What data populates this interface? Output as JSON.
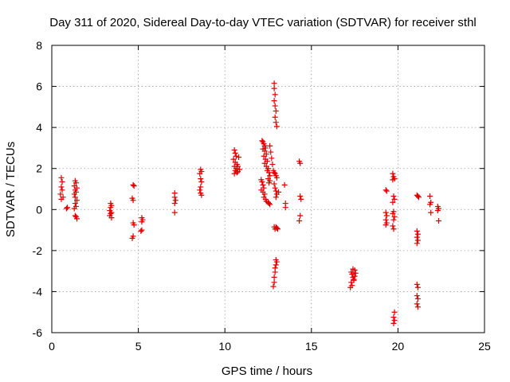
{
  "chart_data": {
    "type": "scatter",
    "title": "Day 311 of 2020, Sidereal Day-to-day VTEC variation (SDTVAR) for receiver sthl",
    "xlabel": "GPS time / hours",
    "ylabel": "SDTVAR / TECUs",
    "xlim": [
      0,
      25
    ],
    "ylim": [
      -6,
      8
    ],
    "xticks": [
      0,
      5,
      10,
      15,
      20,
      25
    ],
    "yticks": [
      -6,
      -4,
      -2,
      0,
      2,
      4,
      6,
      8
    ],
    "x_tick_labels": [
      "0",
      "5",
      "10",
      "15",
      "20",
      "25"
    ],
    "y_tick_labels": [
      "-6",
      "-4",
      "-2",
      "0",
      "2",
      "4",
      "6",
      "8"
    ],
    "grid": true,
    "marker": "+",
    "color": "#e00000",
    "series": [
      {
        "name": "SDTVAR",
        "points": [
          [
            0.55,
            1.55
          ],
          [
            0.6,
            1.35
          ],
          [
            0.55,
            1.1
          ],
          [
            0.6,
            0.95
          ],
          [
            0.5,
            0.75
          ],
          [
            0.65,
            0.6
          ],
          [
            0.55,
            0.5
          ],
          [
            0.9,
            0.1
          ],
          [
            0.85,
            0.05
          ],
          [
            1.35,
            1.4
          ],
          [
            1.4,
            1.3
          ],
          [
            1.3,
            1.15
          ],
          [
            1.45,
            1.05
          ],
          [
            1.35,
            0.95
          ],
          [
            1.4,
            0.85
          ],
          [
            1.3,
            0.75
          ],
          [
            1.35,
            0.6
          ],
          [
            1.45,
            0.45
          ],
          [
            1.35,
            0.3
          ],
          [
            1.4,
            0.15
          ],
          [
            1.3,
            0.05
          ],
          [
            1.35,
            -0.3
          ],
          [
            1.4,
            -0.35
          ],
          [
            1.45,
            -0.45
          ],
          [
            3.4,
            0.3
          ],
          [
            3.45,
            0.2
          ],
          [
            3.4,
            0.1
          ],
          [
            3.35,
            -0.05
          ],
          [
            3.45,
            -0.15
          ],
          [
            3.4,
            -0.2
          ],
          [
            3.35,
            -0.3
          ],
          [
            3.45,
            -0.4
          ],
          [
            4.7,
            1.2
          ],
          [
            4.75,
            1.15
          ],
          [
            4.65,
            0.55
          ],
          [
            4.7,
            0.45
          ],
          [
            4.7,
            -0.65
          ],
          [
            4.75,
            -0.75
          ],
          [
            4.7,
            -1.3
          ],
          [
            4.65,
            -1.4
          ],
          [
            5.2,
            -0.4
          ],
          [
            5.25,
            -0.5
          ],
          [
            5.2,
            -0.6
          ],
          [
            5.2,
            -1.0
          ],
          [
            5.15,
            -1.05
          ],
          [
            7.1,
            0.8
          ],
          [
            7.1,
            0.6
          ],
          [
            7.15,
            0.45
          ],
          [
            7.1,
            0.3
          ],
          [
            7.1,
            -0.15
          ],
          [
            8.6,
            1.95
          ],
          [
            8.65,
            1.85
          ],
          [
            8.55,
            1.75
          ],
          [
            8.6,
            1.5
          ],
          [
            8.65,
            1.35
          ],
          [
            8.6,
            1.1
          ],
          [
            8.55,
            0.95
          ],
          [
            8.6,
            0.8
          ],
          [
            8.65,
            0.7
          ],
          [
            10.55,
            2.9
          ],
          [
            10.6,
            2.75
          ],
          [
            10.65,
            2.6
          ],
          [
            10.5,
            2.45
          ],
          [
            10.6,
            2.3
          ],
          [
            10.7,
            2.2
          ],
          [
            10.55,
            2.1
          ],
          [
            10.65,
            2.0
          ],
          [
            10.6,
            1.9
          ],
          [
            10.7,
            1.8
          ],
          [
            10.55,
            1.75
          ],
          [
            10.8,
            2.55
          ],
          [
            10.75,
            2.1
          ],
          [
            10.85,
            1.95
          ],
          [
            10.75,
            1.85
          ],
          [
            12.15,
            3.35
          ],
          [
            12.2,
            3.3
          ],
          [
            12.25,
            3.2
          ],
          [
            12.3,
            3.1
          ],
          [
            12.35,
            3.0
          ],
          [
            12.2,
            2.95
          ],
          [
            12.3,
            2.85
          ],
          [
            12.4,
            2.7
          ],
          [
            12.25,
            2.6
          ],
          [
            12.35,
            2.45
          ],
          [
            12.45,
            2.35
          ],
          [
            12.3,
            2.25
          ],
          [
            12.4,
            2.1
          ],
          [
            12.5,
            2.0
          ],
          [
            12.45,
            1.9
          ],
          [
            12.55,
            1.8
          ],
          [
            12.6,
            1.65
          ],
          [
            12.5,
            1.5
          ],
          [
            12.6,
            1.4
          ],
          [
            12.55,
            1.3
          ],
          [
            12.1,
            1.45
          ],
          [
            12.15,
            1.35
          ],
          [
            12.2,
            1.2
          ],
          [
            12.25,
            1.05
          ],
          [
            12.1,
            0.95
          ],
          [
            12.2,
            0.85
          ],
          [
            12.3,
            0.75
          ],
          [
            12.25,
            0.6
          ],
          [
            12.35,
            0.5
          ],
          [
            12.4,
            0.4
          ],
          [
            12.5,
            0.35
          ],
          [
            12.55,
            0.3
          ],
          [
            12.6,
            0.25
          ],
          [
            12.6,
            3.1
          ],
          [
            12.65,
            2.8
          ],
          [
            12.7,
            2.5
          ],
          [
            12.75,
            2.2
          ],
          [
            12.8,
            1.9
          ],
          [
            12.85,
            6.15
          ],
          [
            12.85,
            5.9
          ],
          [
            12.9,
            5.6
          ],
          [
            12.85,
            5.3
          ],
          [
            12.9,
            5.05
          ],
          [
            12.95,
            4.8
          ],
          [
            12.9,
            4.5
          ],
          [
            12.95,
            4.25
          ],
          [
            13.0,
            4.05
          ],
          [
            12.85,
            1.8
          ],
          [
            12.9,
            1.75
          ],
          [
            12.95,
            1.65
          ],
          [
            13.0,
            1.55
          ],
          [
            12.85,
            1.25
          ],
          [
            12.9,
            1.05
          ],
          [
            12.95,
            0.9
          ],
          [
            13.0,
            0.75
          ],
          [
            12.95,
            0.6
          ],
          [
            12.85,
            -0.85
          ],
          [
            12.9,
            -0.95
          ],
          [
            12.95,
            -0.85
          ],
          [
            13.0,
            -0.9
          ],
          [
            13.05,
            -0.95
          ],
          [
            12.95,
            -2.45
          ],
          [
            13.0,
            -2.55
          ],
          [
            12.95,
            -2.7
          ],
          [
            12.9,
            -2.85
          ],
          [
            12.9,
            -3.05
          ],
          [
            12.85,
            -3.3
          ],
          [
            12.85,
            -3.55
          ],
          [
            12.8,
            -3.75
          ],
          [
            13.1,
            0.85
          ],
          [
            13.45,
            1.2
          ],
          [
            13.5,
            0.3
          ],
          [
            13.5,
            0.1
          ],
          [
            14.3,
            2.35
          ],
          [
            14.35,
            2.25
          ],
          [
            14.35,
            0.65
          ],
          [
            14.4,
            0.5
          ],
          [
            14.35,
            -0.3
          ],
          [
            14.3,
            -0.55
          ],
          [
            17.3,
            -3.05
          ],
          [
            17.35,
            -3.15
          ],
          [
            17.4,
            -3.3
          ],
          [
            17.45,
            -3.45
          ],
          [
            17.3,
            -3.55
          ],
          [
            17.35,
            -3.7
          ],
          [
            17.25,
            -3.8
          ],
          [
            17.4,
            -2.9
          ],
          [
            17.5,
            -2.95
          ],
          [
            17.55,
            -3.1
          ],
          [
            17.5,
            -3.25
          ],
          [
            17.45,
            -3.4
          ],
          [
            19.3,
            0.95
          ],
          [
            19.35,
            0.9
          ],
          [
            19.3,
            -0.15
          ],
          [
            19.35,
            -0.3
          ],
          [
            19.3,
            -0.5
          ],
          [
            19.35,
            -0.65
          ],
          [
            19.3,
            -0.75
          ],
          [
            19.7,
            1.75
          ],
          [
            19.75,
            1.6
          ],
          [
            19.8,
            1.5
          ],
          [
            19.7,
            1.45
          ],
          [
            19.75,
            0.65
          ],
          [
            19.8,
            0.5
          ],
          [
            19.7,
            0.35
          ],
          [
            19.75,
            -0.1
          ],
          [
            19.7,
            -0.2
          ],
          [
            19.8,
            -0.35
          ],
          [
            19.75,
            -0.5
          ],
          [
            19.7,
            -0.8
          ],
          [
            19.75,
            -0.95
          ],
          [
            19.8,
            -5.0
          ],
          [
            19.75,
            -5.25
          ],
          [
            19.8,
            -5.4
          ],
          [
            19.75,
            -5.55
          ],
          [
            21.1,
            0.7
          ],
          [
            21.15,
            0.65
          ],
          [
            21.2,
            0.6
          ],
          [
            21.1,
            -1.05
          ],
          [
            21.15,
            -1.2
          ],
          [
            21.1,
            -1.35
          ],
          [
            21.15,
            -1.5
          ],
          [
            21.1,
            -1.65
          ],
          [
            21.1,
            -3.65
          ],
          [
            21.15,
            -3.8
          ],
          [
            21.1,
            -4.2
          ],
          [
            21.15,
            -4.35
          ],
          [
            21.1,
            -4.6
          ],
          [
            21.15,
            -4.75
          ],
          [
            21.85,
            0.65
          ],
          [
            21.9,
            0.35
          ],
          [
            21.85,
            0.25
          ],
          [
            21.9,
            -0.15
          ],
          [
            22.3,
            0.15
          ],
          [
            22.35,
            0.05
          ],
          [
            22.3,
            -0.05
          ],
          [
            22.35,
            -0.55
          ]
        ]
      }
    ]
  }
}
